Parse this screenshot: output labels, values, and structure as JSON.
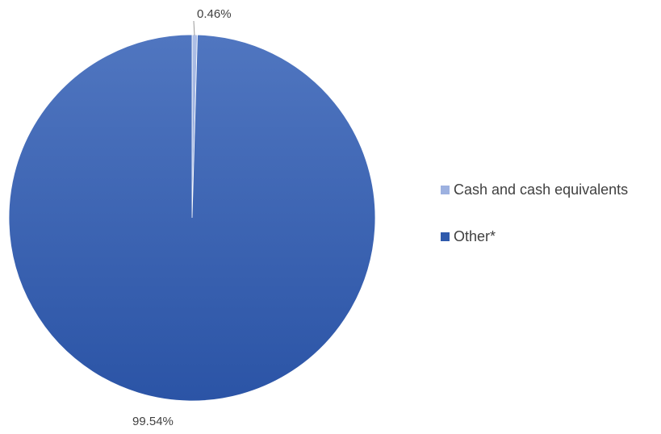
{
  "chart_data": {
    "type": "pie",
    "title": "",
    "categories": [
      "Cash and cash equivalents",
      "Other*"
    ],
    "values": [
      0.46,
      99.54
    ],
    "data_labels": [
      "0.46%",
      "99.54%"
    ],
    "colors": [
      "#9db1e0",
      "#2f5aac"
    ],
    "legend_position": "right"
  }
}
